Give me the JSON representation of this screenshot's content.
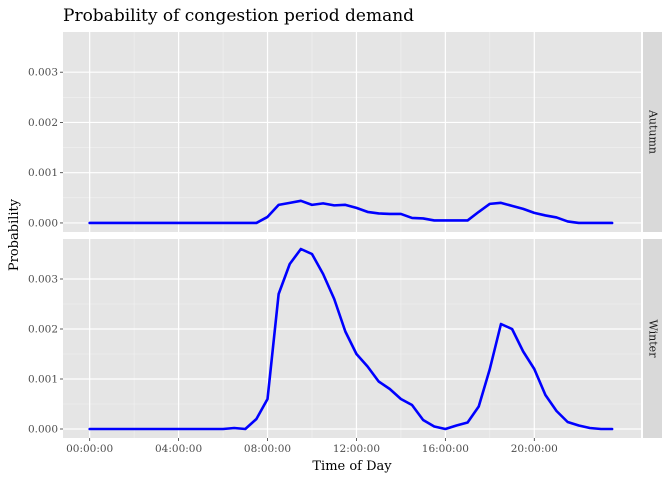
{
  "chart_data": {
    "type": "line",
    "title": "Probability of congestion period demand",
    "xlabel": "Time of Day",
    "ylabel": "Probability",
    "x_tick_labels": [
      "00:00:00",
      "04:00:00",
      "08:00:00",
      "12:00:00",
      "16:00:00",
      "20:00:00"
    ],
    "x_tick_hours": [
      0,
      4,
      8,
      12,
      16,
      20
    ],
    "xlim_hours": [
      -1.2,
      24.8
    ],
    "y_tick_labels": [
      "0.000",
      "0.001",
      "0.002",
      "0.003"
    ],
    "y_tick_values": [
      0,
      0.001,
      0.002,
      0.003
    ],
    "ylim": [
      -0.00018,
      0.0038
    ],
    "grid": true,
    "line_color": "#0000ff",
    "panel_background": "#e5e5e5",
    "strip_background": "#d9d9d9",
    "x_hours": [
      0,
      0.5,
      1,
      1.5,
      2,
      2.5,
      3,
      3.5,
      4,
      4.5,
      5,
      5.5,
      6,
      6.5,
      7,
      7.5,
      8,
      8.5,
      9,
      9.5,
      10,
      10.5,
      11,
      11.5,
      12,
      12.5,
      13,
      13.5,
      14,
      14.5,
      15,
      15.5,
      16,
      16.5,
      17,
      17.5,
      18,
      18.5,
      19,
      19.5,
      20,
      20.5,
      21,
      21.5,
      22,
      22.5,
      23,
      23.5
    ],
    "panels": [
      {
        "name": "Autumn",
        "values": [
          0,
          0,
          0,
          0,
          0,
          0,
          0,
          0,
          0,
          0,
          0,
          0,
          0,
          0,
          0,
          0,
          0.00012,
          0.00036,
          0.0004,
          0.00044,
          0.00036,
          0.00039,
          0.00035,
          0.00036,
          0.0003,
          0.00022,
          0.00019,
          0.00018,
          0.00018,
          0.0001,
          9e-05,
          5e-05,
          5e-05,
          5e-05,
          5e-05,
          0.00022,
          0.00038,
          0.0004,
          0.00034,
          0.00028,
          0.0002,
          0.00015,
          0.00011,
          3e-05,
          0,
          0,
          0,
          0
        ]
      },
      {
        "name": "Winter",
        "values": [
          0,
          0,
          0,
          0,
          0,
          0,
          0,
          0,
          0,
          0,
          0,
          0,
          0,
          2e-05,
          0,
          0.0002,
          0.0006,
          0.0027,
          0.0033,
          0.0036,
          0.0035,
          0.0031,
          0.0026,
          0.00195,
          0.0015,
          0.00125,
          0.00095,
          0.0008,
          0.0006,
          0.00048,
          0.00018,
          5e-05,
          0,
          7e-05,
          0.00013,
          0.00045,
          0.0012,
          0.0021,
          0.002,
          0.00155,
          0.0012,
          0.00068,
          0.00036,
          0.00014,
          7e-05,
          2e-05,
          0,
          0
        ]
      }
    ]
  }
}
